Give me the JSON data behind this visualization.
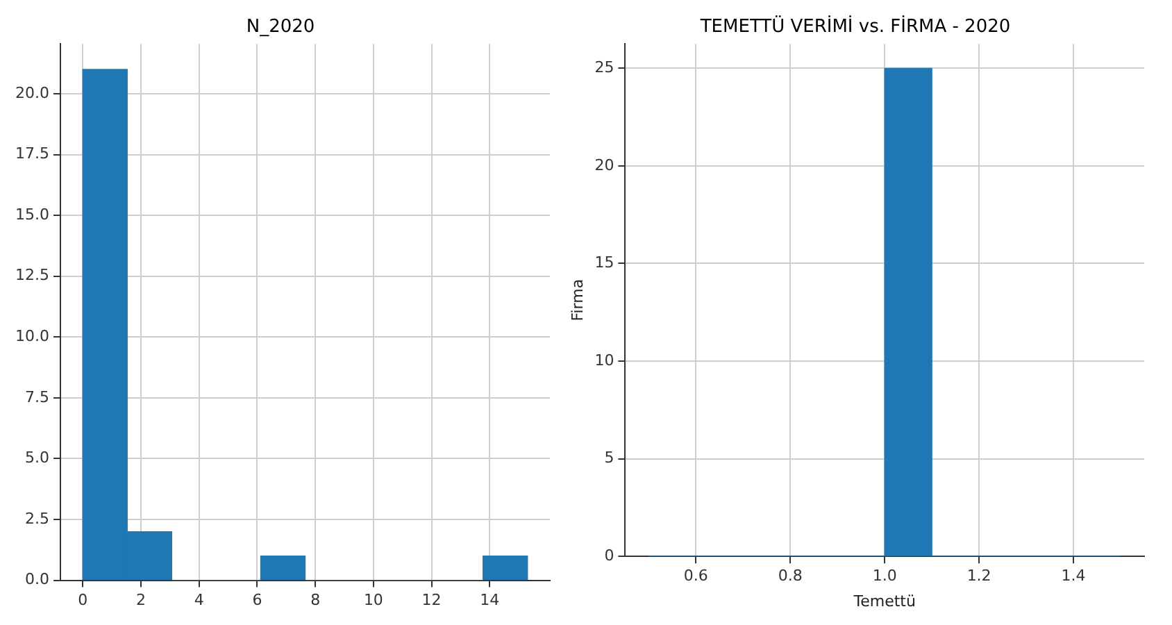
{
  "chart_data": [
    {
      "type": "histogram",
      "title": "N_2020",
      "bins": [
        0,
        1.53,
        3.06,
        4.59,
        6.12,
        7.65,
        9.18,
        10.71,
        12.24,
        13.77,
        15.3
      ],
      "values": [
        21,
        2,
        0,
        0,
        1,
        0,
        0,
        0,
        0,
        1
      ],
      "color": "#1f77b4",
      "xlim": [
        -0.77,
        16.07
      ],
      "xticks": [
        0,
        2,
        4,
        6,
        8,
        10,
        12,
        14
      ],
      "ylim": [
        0,
        22.05
      ],
      "yticks": [
        {
          "value": 0,
          "label": "0.0"
        },
        {
          "value": 2.5,
          "label": "2.5"
        },
        {
          "value": 5,
          "label": "5.0"
        },
        {
          "value": 7.5,
          "label": "7.5"
        },
        {
          "value": 10,
          "label": "10.0"
        },
        {
          "value": 12.5,
          "label": "12.5"
        },
        {
          "value": 15,
          "label": "15.0"
        },
        {
          "value": 17.5,
          "label": "17.5"
        },
        {
          "value": 20,
          "label": "20.0"
        }
      ],
      "grid": true
    },
    {
      "type": "histogram",
      "title": "TEMETTÜ VERİMİ vs. FİRMA - 2020",
      "xlabel": "Temettü",
      "ylabel": "Firma",
      "bins": [
        0.5,
        0.6,
        0.7,
        0.8,
        0.9,
        1.0,
        1.1,
        1.2,
        1.3,
        1.4,
        1.5
      ],
      "values": [
        0,
        0,
        0,
        0,
        0,
        25,
        0,
        0,
        0,
        0
      ],
      "color": "#1f77b4",
      "xlim": [
        0.45,
        1.55
      ],
      "xticks": [
        {
          "value": 0.6,
          "label": "0.6"
        },
        {
          "value": 0.8,
          "label": "0.8"
        },
        {
          "value": 1.0,
          "label": "1.0"
        },
        {
          "value": 1.2,
          "label": "1.2"
        },
        {
          "value": 1.4,
          "label": "1.4"
        }
      ],
      "ylim": [
        0,
        26.25
      ],
      "yticks": [
        0,
        5,
        10,
        15,
        20,
        25
      ],
      "grid": true
    }
  ]
}
